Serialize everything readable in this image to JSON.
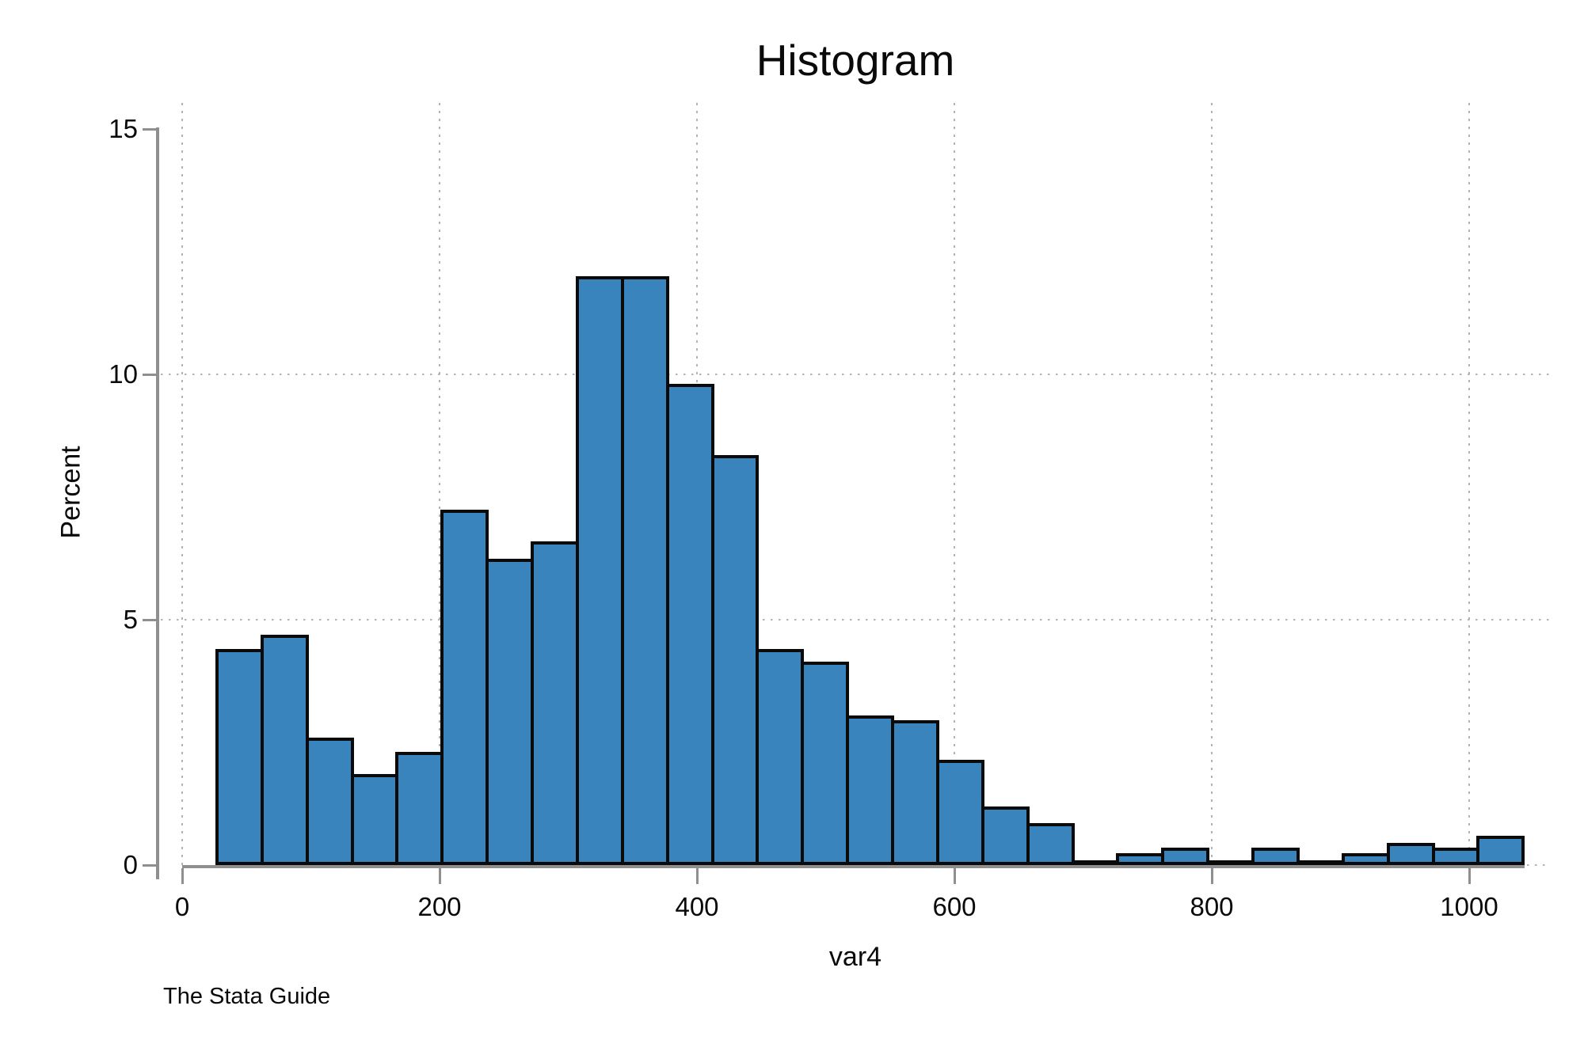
{
  "title": "Histogram",
  "y_axis": {
    "label": "Percent",
    "tick_labels": [
      "0",
      "5",
      "10",
      "15"
    ]
  },
  "x_axis": {
    "label": "var4",
    "tick_labels": [
      "0",
      "200",
      "400",
      "600",
      "800",
      "1000"
    ]
  },
  "caption": "The Stata Guide",
  "colors": {
    "bar_fill": "#3a84bd",
    "bar_border": "#0a0a0a",
    "axis": "#8f8f8f",
    "grid": "#b3b3b3",
    "text": "#0a0a0a",
    "background": "#ffffff"
  },
  "chart_data": {
    "type": "bar",
    "subtype": "histogram",
    "title": "Histogram",
    "xlabel": "var4",
    "ylabel": "Percent",
    "xlim": [
      0,
      1065
    ],
    "ylim": [
      0,
      15
    ],
    "x_ticks": [
      0,
      200,
      400,
      600,
      800,
      1000
    ],
    "y_ticks": [
      0,
      5,
      10,
      15
    ],
    "y_gridlines": [
      5,
      10
    ],
    "x_gridlines": [
      0,
      200,
      400,
      600,
      800,
      1000
    ],
    "grid_style": "dotted",
    "legend": false,
    "bin_start": 27,
    "bin_width": 35,
    "values_percent": [
      4.4,
      4.7,
      2.6,
      1.85,
      2.3,
      7.25,
      6.25,
      6.6,
      12.0,
      12.0,
      9.8,
      8.35,
      4.4,
      4.15,
      3.05,
      2.95,
      2.15,
      1.2,
      0.85,
      0.1,
      0.25,
      0.35,
      0.1,
      0.35,
      0.1,
      0.25,
      0.45,
      0.35,
      0.6
    ]
  }
}
